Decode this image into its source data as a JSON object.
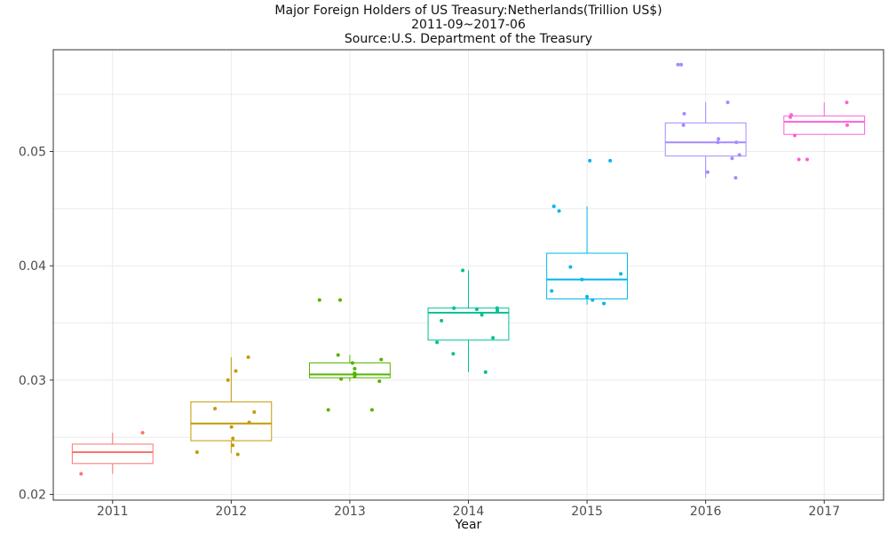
{
  "chart_data": {
    "type": "box",
    "title": "Major Foreign Holders of US Treasury:Netherlands(Trillion US$)",
    "subtitle": "2011-09~2017-06",
    "source": "Source:U.S. Department of the Treasury",
    "xlabel": "Year",
    "ylabel": "",
    "categories": [
      "2011",
      "2012",
      "2013",
      "2014",
      "2015",
      "2016",
      "2017"
    ],
    "ylim": [
      0.0195,
      0.0589
    ],
    "yticks": [
      0.02,
      0.03,
      0.04,
      0.05
    ],
    "ytick_labels": [
      "0.02",
      "0.03",
      "0.04",
      "0.05"
    ],
    "grid": true,
    "colors": [
      "#F8766D",
      "#C49A00",
      "#53B400",
      "#00C094",
      "#00B6EB",
      "#A58AFF",
      "#FB61D7"
    ],
    "boxes": [
      {
        "category": "2011",
        "q1": 0.0227,
        "median": 0.0237,
        "q3": 0.0244,
        "whisker_low": 0.0218,
        "whisker_high": 0.0254,
        "points": [
          0.0254,
          0.0218
        ]
      },
      {
        "category": "2012",
        "q1": 0.0247,
        "median": 0.0262,
        "q3": 0.0281,
        "whisker_low": 0.0236,
        "whisker_high": 0.032,
        "points": [
          0.032,
          0.0308,
          0.03,
          0.0275,
          0.0272,
          0.0263,
          0.0259,
          0.0249,
          0.0243,
          0.0237,
          0.0235
        ]
      },
      {
        "category": "2013",
        "q1": 0.0302,
        "median": 0.0305,
        "q3": 0.0315,
        "whisker_low": 0.0299,
        "whisker_high": 0.0322,
        "points": [
          0.037,
          0.037,
          0.0322,
          0.0318,
          0.0315,
          0.031,
          0.0306,
          0.0305,
          0.0303,
          0.0301,
          0.0299,
          0.0274,
          0.0274
        ]
      },
      {
        "category": "2014",
        "q1": 0.0335,
        "median": 0.0359,
        "q3": 0.0363,
        "whisker_low": 0.0307,
        "whisker_high": 0.0396,
        "points": [
          0.0396,
          0.0363,
          0.0363,
          0.0362,
          0.0361,
          0.0357,
          0.0352,
          0.0337,
          0.0333,
          0.0323,
          0.0307
        ]
      },
      {
        "category": "2015",
        "q1": 0.0371,
        "median": 0.0388,
        "q3": 0.0411,
        "whisker_low": 0.0366,
        "whisker_high": 0.0452,
        "points": [
          0.0492,
          0.0492,
          0.0452,
          0.0448,
          0.0399,
          0.0393,
          0.0388,
          0.0378,
          0.0373,
          0.037,
          0.0367
        ]
      },
      {
        "category": "2016",
        "q1": 0.0496,
        "median": 0.0508,
        "q3": 0.0525,
        "whisker_low": 0.0477,
        "whisker_high": 0.0543,
        "points": [
          0.0576,
          0.0576,
          0.0543,
          0.0533,
          0.0523,
          0.0511,
          0.0508,
          0.0508,
          0.0497,
          0.0494,
          0.0482,
          0.0477
        ]
      },
      {
        "category": "2017",
        "q1": 0.0515,
        "median": 0.0526,
        "q3": 0.0531,
        "whisker_low": 0.0515,
        "whisker_high": 0.0543,
        "points": [
          0.0543,
          0.0532,
          0.053,
          0.0523,
          0.0514,
          0.0493,
          0.0493
        ]
      }
    ]
  }
}
